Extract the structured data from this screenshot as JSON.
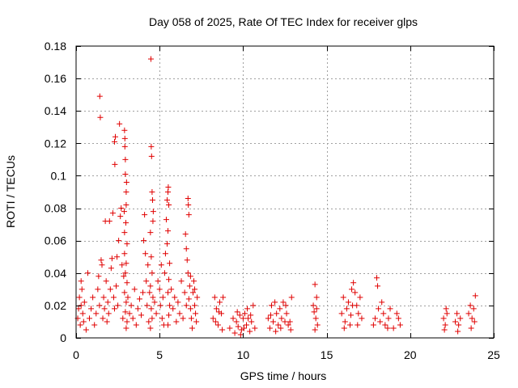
{
  "chart_data": {
    "type": "scatter",
    "title": "Day 058 of 2025, Rate Of TEC Index for receiver glps",
    "xlabel": "GPS time / hours",
    "ylabel": "ROTI / TECUs",
    "xlim": [
      0,
      25
    ],
    "ylim": [
      0,
      0.18
    ],
    "xticks": [
      0,
      5,
      10,
      15,
      20,
      25
    ],
    "xtick_labels": [
      "0",
      "5",
      "10",
      "15",
      "20",
      "25"
    ],
    "yticks": [
      0,
      0.02,
      0.04,
      0.06,
      0.08,
      0.1,
      0.12,
      0.14,
      0.16,
      0.18
    ],
    "ytick_labels": [
      "0",
      "0.02",
      "0.04",
      "0.06",
      "0.08",
      "0.1",
      "0.12",
      "0.14",
      "0.16",
      "0.18"
    ],
    "grid": true,
    "marker": "plus",
    "color": "#e00000",
    "series": [
      {
        "name": "ROTI",
        "points": [
          [
            0.1,
            0.012
          ],
          [
            0.15,
            0.018
          ],
          [
            0.2,
            0.025
          ],
          [
            0.25,
            0.008
          ],
          [
            0.3,
            0.02
          ],
          [
            0.35,
            0.03
          ],
          [
            0.4,
            0.015
          ],
          [
            0.45,
            0.01
          ],
          [
            0.5,
            0.022
          ],
          [
            0.3,
            0.035
          ],
          [
            0.6,
            0.005
          ],
          [
            0.7,
            0.04
          ],
          [
            0.8,
            0.012
          ],
          [
            0.9,
            0.018
          ],
          [
            1.0,
            0.025
          ],
          [
            1.1,
            0.008
          ],
          [
            1.2,
            0.015
          ],
          [
            1.3,
            0.03
          ],
          [
            1.35,
            0.038
          ],
          [
            1.4,
            0.02
          ],
          [
            1.42,
            0.149
          ],
          [
            1.45,
            0.136
          ],
          [
            1.5,
            0.048
          ],
          [
            1.55,
            0.045
          ],
          [
            1.6,
            0.012
          ],
          [
            1.65,
            0.025
          ],
          [
            1.7,
            0.018
          ],
          [
            1.75,
            0.072
          ],
          [
            1.8,
            0.035
          ],
          [
            1.85,
            0.01
          ],
          [
            1.9,
            0.022
          ],
          [
            1.95,
            0.015
          ],
          [
            2.0,
            0.072
          ],
          [
            2.05,
            0.03
          ],
          [
            2.1,
            0.043
          ],
          [
            2.15,
            0.049
          ],
          [
            2.2,
            0.077
          ],
          [
            2.25,
            0.025
          ],
          [
            2.3,
            0.018
          ],
          [
            2.32,
            0.107
          ],
          [
            2.3,
            0.121
          ],
          [
            2.35,
            0.124
          ],
          [
            2.4,
            0.032
          ],
          [
            2.45,
            0.05
          ],
          [
            2.5,
            0.02
          ],
          [
            2.55,
            0.06
          ],
          [
            2.6,
            0.132
          ],
          [
            2.65,
            0.075
          ],
          [
            2.7,
            0.08
          ],
          [
            2.75,
            0.045
          ],
          [
            2.8,
            0.012
          ],
          [
            2.85,
            0.038
          ],
          [
            2.9,
            0.128
          ],
          [
            2.92,
            0.123
          ],
          [
            2.95,
            0.11
          ],
          [
            2.95,
            0.101
          ],
          [
            3.0,
            0.09
          ],
          [
            3.0,
            0.082
          ],
          [
            2.98,
            0.071
          ],
          [
            2.9,
            0.065
          ],
          [
            3.05,
            0.058
          ],
          [
            2.9,
            0.052
          ],
          [
            3.0,
            0.046
          ],
          [
            2.95,
            0.04
          ],
          [
            3.05,
            0.034
          ],
          [
            2.9,
            0.028
          ],
          [
            3.0,
            0.022
          ],
          [
            2.95,
            0.016
          ],
          [
            3.05,
            0.01
          ],
          [
            3.0,
            0.006
          ],
          [
            2.92,
            0.118
          ],
          [
            3.02,
            0.096
          ],
          [
            2.88,
            0.078
          ],
          [
            3.1,
            0.025
          ],
          [
            3.2,
            0.015
          ],
          [
            3.3,
            0.02
          ],
          [
            3.4,
            0.012
          ],
          [
            3.5,
            0.03
          ],
          [
            3.6,
            0.008
          ],
          [
            3.7,
            0.018
          ],
          [
            3.8,
            0.024
          ],
          [
            3.9,
            0.014
          ],
          [
            4.0,
            0.028
          ],
          [
            4.05,
            0.06
          ],
          [
            4.1,
            0.076
          ],
          [
            4.15,
            0.052
          ],
          [
            4.2,
            0.035
          ],
          [
            4.25,
            0.02
          ],
          [
            4.3,
            0.045
          ],
          [
            4.35,
            0.01
          ],
          [
            4.4,
            0.028
          ],
          [
            4.45,
            0.065
          ],
          [
            4.48,
            0.172
          ],
          [
            4.5,
            0.118
          ],
          [
            4.52,
            0.112
          ],
          [
            4.55,
            0.09
          ],
          [
            4.58,
            0.085
          ],
          [
            4.6,
            0.072
          ],
          [
            4.62,
            0.078
          ],
          [
            4.5,
            0.05
          ],
          [
            4.55,
            0.04
          ],
          [
            4.45,
            0.032
          ],
          [
            4.6,
            0.025
          ],
          [
            4.5,
            0.018
          ],
          [
            4.55,
            0.012
          ],
          [
            4.45,
            0.006
          ],
          [
            4.7,
            0.022
          ],
          [
            4.8,
            0.015
          ],
          [
            4.9,
            0.035
          ],
          [
            5.0,
            0.03
          ],
          [
            5.05,
            0.02
          ],
          [
            5.1,
            0.045
          ],
          [
            5.15,
            0.012
          ],
          [
            5.2,
            0.025
          ],
          [
            5.25,
            0.008
          ],
          [
            5.3,
            0.04
          ],
          [
            5.35,
            0.052
          ],
          [
            5.4,
            0.073
          ],
          [
            5.45,
            0.085
          ],
          [
            5.5,
            0.09
          ],
          [
            5.52,
            0.093
          ],
          [
            5.55,
            0.082
          ],
          [
            5.5,
            0.066
          ],
          [
            5.45,
            0.058
          ],
          [
            5.6,
            0.046
          ],
          [
            5.55,
            0.036
          ],
          [
            5.5,
            0.028
          ],
          [
            5.6,
            0.02
          ],
          [
            5.55,
            0.014
          ],
          [
            5.5,
            0.008
          ],
          [
            5.7,
            0.03
          ],
          [
            5.8,
            0.018
          ],
          [
            5.9,
            0.025
          ],
          [
            6.0,
            0.01
          ],
          [
            6.1,
            0.022
          ],
          [
            6.2,
            0.015
          ],
          [
            6.3,
            0.035
          ],
          [
            6.4,
            0.012
          ],
          [
            6.5,
            0.028
          ],
          [
            6.55,
            0.064
          ],
          [
            6.6,
            0.055
          ],
          [
            6.65,
            0.048
          ],
          [
            6.7,
            0.086
          ],
          [
            6.72,
            0.082
          ],
          [
            6.75,
            0.076
          ],
          [
            6.7,
            0.04
          ],
          [
            6.8,
            0.032
          ],
          [
            6.75,
            0.024
          ],
          [
            6.85,
            0.018
          ],
          [
            6.9,
            0.012
          ],
          [
            7.0,
            0.028
          ],
          [
            7.05,
            0.035
          ],
          [
            7.1,
            0.02
          ],
          [
            7.15,
            0.015
          ],
          [
            7.2,
            0.01
          ],
          [
            7.25,
            0.025
          ],
          [
            6.95,
            0.006
          ],
          [
            6.6,
            0.02
          ],
          [
            6.85,
            0.038
          ],
          [
            7.1,
            0.03
          ],
          [
            8.2,
            0.012
          ],
          [
            8.3,
            0.025
          ],
          [
            8.4,
            0.018
          ],
          [
            8.5,
            0.008
          ],
          [
            8.6,
            0.022
          ],
          [
            8.7,
            0.015
          ],
          [
            8.8,
            0.025
          ],
          [
            8.35,
            0.01
          ],
          [
            8.55,
            0.016
          ],
          [
            8.75,
            0.005
          ],
          [
            9.2,
            0.006
          ],
          [
            9.4,
            0.012
          ],
          [
            9.5,
            0.003
          ],
          [
            9.6,
            0.01
          ],
          [
            9.7,
            0.007
          ],
          [
            9.8,
            0.014
          ],
          [
            9.9,
            0.005
          ],
          [
            10.0,
            0.012
          ],
          [
            10.1,
            0.015
          ],
          [
            10.2,
            0.008
          ],
          [
            10.3,
            0.012
          ],
          [
            10.4,
            0.004
          ],
          [
            10.5,
            0.01
          ],
          [
            10.6,
            0.02
          ],
          [
            10.7,
            0.006
          ],
          [
            9.65,
            0.016
          ],
          [
            9.85,
            0.002
          ],
          [
            10.05,
            0.006
          ],
          [
            10.25,
            0.018
          ],
          [
            10.45,
            0.014
          ],
          [
            11.5,
            0.012
          ],
          [
            11.6,
            0.006
          ],
          [
            11.7,
            0.02
          ],
          [
            11.8,
            0.01
          ],
          [
            11.9,
            0.022
          ],
          [
            12.0,
            0.015
          ],
          [
            12.1,
            0.008
          ],
          [
            12.2,
            0.018
          ],
          [
            12.3,
            0.012
          ],
          [
            12.4,
            0.022
          ],
          [
            12.5,
            0.01
          ],
          [
            12.6,
            0.015
          ],
          [
            12.7,
            0.008
          ],
          [
            12.8,
            0.01
          ],
          [
            12.9,
            0.025
          ],
          [
            11.65,
            0.014
          ],
          [
            11.95,
            0.004
          ],
          [
            12.25,
            0.006
          ],
          [
            12.55,
            0.02
          ],
          [
            12.85,
            0.005
          ],
          [
            14.2,
            0.02
          ],
          [
            14.3,
            0.033
          ],
          [
            14.35,
            0.012
          ],
          [
            14.4,
            0.025
          ],
          [
            14.45,
            0.008
          ],
          [
            14.25,
            0.016
          ],
          [
            14.4,
            0.018
          ],
          [
            14.3,
            0.005
          ],
          [
            15.9,
            0.015
          ],
          [
            16.0,
            0.025
          ],
          [
            16.1,
            0.01
          ],
          [
            16.2,
            0.018
          ],
          [
            16.3,
            0.022
          ],
          [
            16.4,
            0.008
          ],
          [
            16.5,
            0.03
          ],
          [
            16.6,
            0.034
          ],
          [
            16.7,
            0.028
          ],
          [
            16.8,
            0.02
          ],
          [
            16.9,
            0.015
          ],
          [
            17.0,
            0.025
          ],
          [
            17.1,
            0.012
          ],
          [
            16.05,
            0.006
          ],
          [
            16.45,
            0.014
          ],
          [
            16.85,
            0.008
          ],
          [
            16.55,
            0.02
          ],
          [
            17.8,
            0.008
          ],
          [
            17.9,
            0.012
          ],
          [
            18.0,
            0.037
          ],
          [
            18.05,
            0.032
          ],
          [
            18.1,
            0.018
          ],
          [
            18.2,
            0.01
          ],
          [
            18.3,
            0.022
          ],
          [
            18.4,
            0.015
          ],
          [
            18.5,
            0.008
          ],
          [
            18.7,
            0.012
          ],
          [
            18.8,
            0.018
          ],
          [
            19.0,
            0.006
          ],
          [
            19.3,
            0.012
          ],
          [
            19.4,
            0.008
          ],
          [
            18.65,
            0.006
          ],
          [
            19.2,
            0.015
          ],
          [
            22.0,
            0.012
          ],
          [
            22.1,
            0.008
          ],
          [
            22.15,
            0.018
          ],
          [
            22.2,
            0.015
          ],
          [
            22.05,
            0.005
          ],
          [
            22.7,
            0.01
          ],
          [
            22.8,
            0.015
          ],
          [
            22.9,
            0.008
          ],
          [
            23.0,
            0.012
          ],
          [
            22.85,
            0.004
          ],
          [
            23.5,
            0.015
          ],
          [
            23.6,
            0.02
          ],
          [
            23.7,
            0.012
          ],
          [
            23.8,
            0.018
          ],
          [
            23.9,
            0.026
          ],
          [
            23.65,
            0.006
          ],
          [
            23.85,
            0.01
          ]
        ]
      }
    ]
  }
}
